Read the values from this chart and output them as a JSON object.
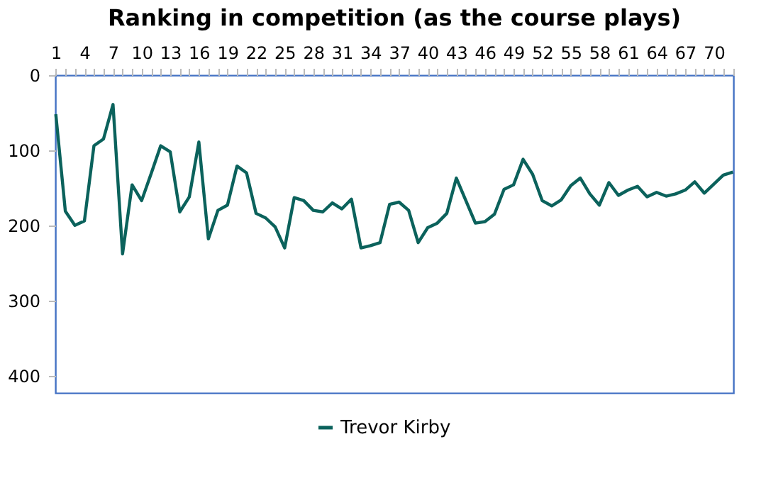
{
  "chart_data": {
    "type": "line",
    "title": "Ranking in competition (as the course plays)",
    "categories": [
      "1",
      null,
      null,
      "4",
      null,
      null,
      "7",
      null,
      null,
      "10",
      null,
      null,
      "13",
      null,
      null,
      "16",
      null,
      null,
      "19",
      null,
      null,
      "22",
      null,
      null,
      "25",
      null,
      null,
      "28",
      null,
      null,
      "31",
      null,
      null,
      "34",
      null,
      null,
      "37",
      null,
      null,
      "40",
      null,
      null,
      "43",
      null,
      null,
      "46",
      null,
      null,
      "49",
      null,
      null,
      "52",
      null,
      null,
      "55",
      null,
      null,
      "58",
      null,
      null,
      "61",
      null,
      null,
      "64",
      null,
      null,
      "67",
      null,
      null,
      "70",
      null,
      null
    ],
    "series": [
      {
        "name": "Trevor Kirby",
        "color": "#0b625c",
        "values": [
          52,
          181,
          200,
          194,
          94,
          85,
          39,
          238,
          146,
          167,
          131,
          94,
          102,
          182,
          162,
          89,
          218,
          180,
          173,
          121,
          130,
          184,
          190,
          202,
          230,
          163,
          167,
          180,
          182,
          170,
          178,
          165,
          230,
          227,
          223,
          172,
          169,
          180,
          223,
          203,
          197,
          184,
          137,
          167,
          197,
          195,
          185,
          152,
          146,
          112,
          132,
          167,
          174,
          166,
          147,
          137,
          158,
          173,
          143,
          160,
          153,
          148,
          162,
          156,
          161,
          158,
          153,
          142,
          157,
          145,
          133,
          129
        ]
      }
    ],
    "ylim": [
      423,
      0
    ],
    "yticks": [
      0,
      100,
      200,
      300,
      400
    ],
    "grid": false,
    "legend": "bottom",
    "line_style": "solid",
    "marker": "none"
  }
}
